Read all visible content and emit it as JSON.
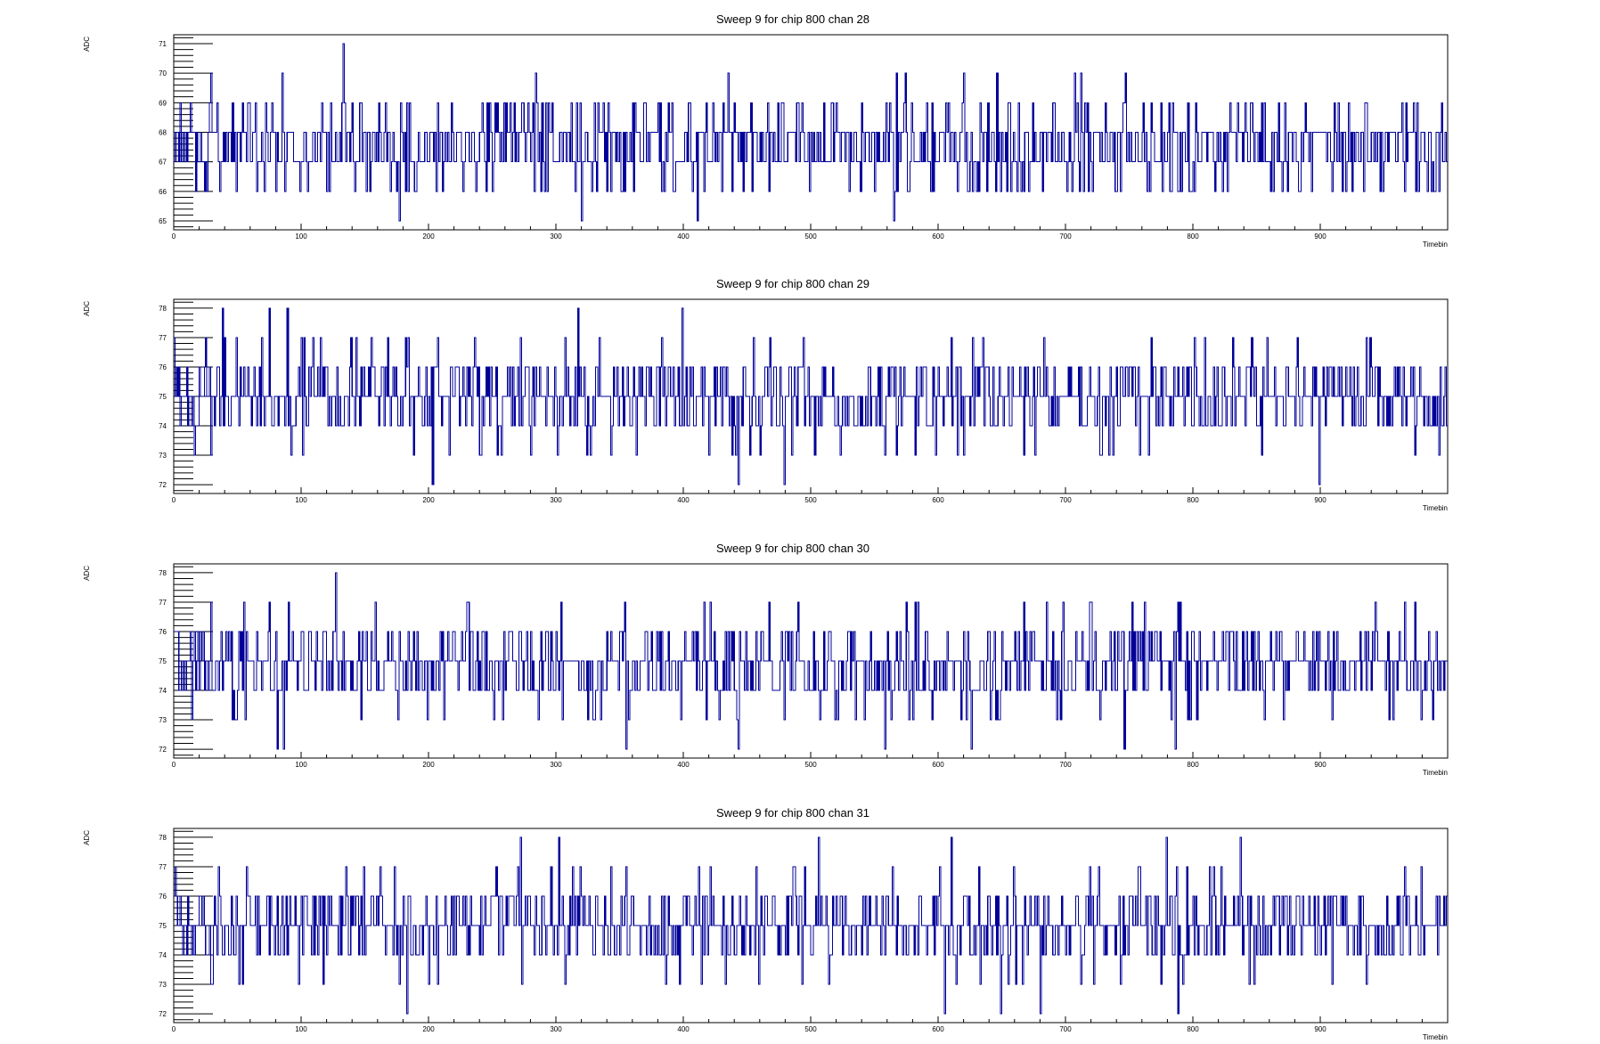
{
  "chart_data": [
    {
      "type": "line",
      "title": "Sweep 9 for chip 800 chan 28",
      "xlabel": "Timebin",
      "ylabel": "ADC",
      "xlim": [
        0,
        1000
      ],
      "ylim": [
        64.7,
        71.3
      ],
      "xticks": [
        "0",
        "100",
        "200",
        "300",
        "400",
        "500",
        "600",
        "700",
        "800",
        "900"
      ],
      "yticks": [
        "65",
        "66",
        "67",
        "68",
        "69",
        "70",
        "71"
      ],
      "line_color": "#000099",
      "n_points": 1000,
      "baseline": 67.5,
      "min_value": 65,
      "max_value": 71,
      "notable_points": [
        [
          133,
          71
        ],
        [
          177,
          65
        ],
        [
          320,
          65
        ],
        [
          411,
          65
        ],
        [
          565,
          65
        ]
      ]
    },
    {
      "type": "line",
      "title": "Sweep 9 for chip 800 chan 29",
      "xlabel": "Timebin",
      "ylabel": "ADC",
      "xlim": [
        0,
        1000
      ],
      "ylim": [
        71.7,
        78.3
      ],
      "xticks": [
        "0",
        "100",
        "200",
        "300",
        "400",
        "500",
        "600",
        "700",
        "800",
        "900"
      ],
      "yticks": [
        "72",
        "73",
        "74",
        "75",
        "76",
        "77",
        "78"
      ],
      "line_color": "#000099",
      "n_points": 1000,
      "baseline": 75,
      "min_value": 72,
      "max_value": 78,
      "notable_points": [
        [
          203,
          72
        ],
        [
          443,
          72
        ],
        [
          479,
          72
        ],
        [
          899,
          72
        ],
        [
          38,
          78
        ],
        [
          75,
          78
        ],
        [
          89,
          78
        ],
        [
          317,
          78
        ],
        [
          399,
          78
        ]
      ]
    },
    {
      "type": "line",
      "title": "Sweep 9 for chip 800 chan 30",
      "xlabel": "Timebin",
      "ylabel": "ADC",
      "xlim": [
        0,
        1000
      ],
      "ylim": [
        71.7,
        78.3
      ],
      "xticks": [
        "0",
        "100",
        "200",
        "300",
        "400",
        "500",
        "600",
        "700",
        "800",
        "900"
      ],
      "yticks": [
        "72",
        "73",
        "74",
        "75",
        "76",
        "77",
        "78"
      ],
      "line_color": "#000099",
      "n_points": 1000,
      "baseline": 74.8,
      "min_value": 72,
      "max_value": 78,
      "notable_points": [
        [
          127,
          78
        ],
        [
          81,
          72
        ],
        [
          86,
          72
        ],
        [
          355,
          72
        ],
        [
          443,
          72
        ],
        [
          558,
          72
        ],
        [
          626,
          72
        ],
        [
          746,
          72
        ],
        [
          786,
          72
        ]
      ]
    },
    {
      "type": "line",
      "title": "Sweep 9 for chip 800 chan 31",
      "xlabel": "Timebin",
      "ylabel": "ADC",
      "xlim": [
        0,
        1000
      ],
      "ylim": [
        71.7,
        78.3
      ],
      "xticks": [
        "0",
        "100",
        "200",
        "300",
        "400",
        "500",
        "600",
        "700",
        "800",
        "900"
      ],
      "yticks": [
        "72",
        "73",
        "74",
        "75",
        "76",
        "77",
        "78"
      ],
      "line_color": "#000099",
      "n_points": 1000,
      "baseline": 75,
      "min_value": 72,
      "max_value": 78,
      "notable_points": [
        [
          183,
          72
        ],
        [
          605,
          72
        ],
        [
          649,
          72
        ],
        [
          680,
          72
        ],
        [
          788,
          72
        ],
        [
          272,
          78
        ],
        [
          302,
          78
        ],
        [
          506,
          78
        ],
        [
          610,
          78
        ],
        [
          779,
          78
        ],
        [
          837,
          78
        ]
      ]
    }
  ]
}
